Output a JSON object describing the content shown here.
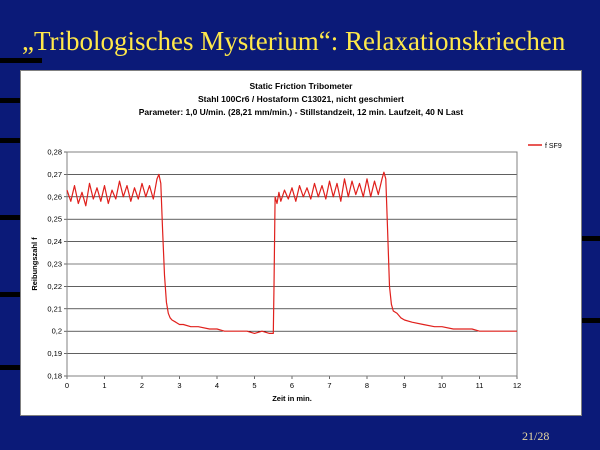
{
  "slide": {
    "title": "„Tribologisches Mysterium“: Relaxationskriechen",
    "page_number": "21/28"
  },
  "colors": {
    "background": "#0b1a78",
    "title": "#ffe84a",
    "series_line": "#e0201c"
  },
  "chart_data": {
    "type": "line",
    "title": [
      "Static Friction Tribometer",
      "Stahl 100Cr6 / Hostaform C13021, nicht geschmiert",
      "Parameter: 1,0 U/min. (28,21 mm/min.) - Stillstandzeit, 12 min. Laufzeit, 40 N Last"
    ],
    "xlabel": "Zeit in min.",
    "ylabel": "Reibungszahl f",
    "xlim": [
      0,
      12
    ],
    "ylim": [
      0.18,
      0.28
    ],
    "xticks": [
      "0",
      "1",
      "2",
      "3",
      "4",
      "5",
      "6",
      "7",
      "8",
      "9",
      "10",
      "11",
      "12"
    ],
    "yticks": [
      "0,18",
      "0,19",
      "0,2",
      "0,21",
      "0,22",
      "0,23",
      "0,24",
      "0,25",
      "0,26",
      "0,27",
      "0,28"
    ],
    "grid": "horizontal",
    "legend_position": "top-right",
    "series": [
      {
        "name": "f SF9",
        "color": "#e0201c",
        "x": [
          0,
          0.1,
          0.2,
          0.3,
          0.4,
          0.5,
          0.6,
          0.7,
          0.8,
          0.9,
          1.0,
          1.1,
          1.2,
          1.3,
          1.4,
          1.5,
          1.6,
          1.7,
          1.8,
          1.9,
          2.0,
          2.1,
          2.2,
          2.3,
          2.4,
          2.45,
          2.5,
          2.55,
          2.6,
          2.65,
          2.7,
          2.75,
          2.8,
          2.9,
          3.0,
          3.1,
          3.3,
          3.5,
          3.8,
          4.0,
          4.2,
          4.5,
          4.8,
          5.0,
          5.2,
          5.4,
          5.5,
          5.52,
          5.55,
          5.6,
          5.65,
          5.7,
          5.8,
          5.9,
          6.0,
          6.1,
          6.2,
          6.3,
          6.4,
          6.5,
          6.6,
          6.7,
          6.8,
          6.9,
          7.0,
          7.1,
          7.2,
          7.3,
          7.4,
          7.5,
          7.6,
          7.7,
          7.8,
          7.9,
          8.0,
          8.1,
          8.2,
          8.3,
          8.4,
          8.45,
          8.5,
          8.55,
          8.6,
          8.65,
          8.7,
          8.8,
          8.9,
          9.0,
          9.2,
          9.5,
          9.8,
          10.0,
          10.3,
          10.5,
          10.8,
          11.0,
          11.3,
          11.5,
          11.8,
          12.0
        ],
        "y": [
          0.263,
          0.258,
          0.265,
          0.257,
          0.262,
          0.256,
          0.266,
          0.259,
          0.264,
          0.258,
          0.265,
          0.257,
          0.263,
          0.259,
          0.267,
          0.26,
          0.265,
          0.258,
          0.264,
          0.259,
          0.266,
          0.26,
          0.265,
          0.259,
          0.268,
          0.27,
          0.266,
          0.245,
          0.225,
          0.213,
          0.208,
          0.206,
          0.205,
          0.204,
          0.203,
          0.203,
          0.202,
          0.202,
          0.201,
          0.201,
          0.2,
          0.2,
          0.2,
          0.199,
          0.2,
          0.199,
          0.199,
          0.22,
          0.26,
          0.257,
          0.262,
          0.258,
          0.263,
          0.259,
          0.264,
          0.258,
          0.265,
          0.26,
          0.264,
          0.259,
          0.266,
          0.26,
          0.265,
          0.259,
          0.267,
          0.26,
          0.266,
          0.258,
          0.268,
          0.26,
          0.267,
          0.261,
          0.266,
          0.26,
          0.268,
          0.26,
          0.267,
          0.261,
          0.268,
          0.271,
          0.268,
          0.245,
          0.22,
          0.212,
          0.209,
          0.208,
          0.206,
          0.205,
          0.204,
          0.203,
          0.202,
          0.202,
          0.201,
          0.201,
          0.201,
          0.2,
          0.2,
          0.2,
          0.2,
          0.2
        ]
      }
    ]
  }
}
